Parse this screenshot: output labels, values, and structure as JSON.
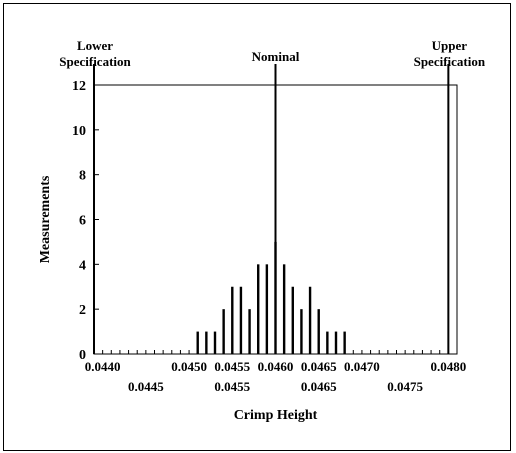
{
  "chart_data": {
    "type": "bar",
    "title": "",
    "xlabel": "Crimp Height",
    "ylabel": "Measurements",
    "xlim": [
      0.0439,
      0.0481
    ],
    "ylim": [
      0,
      12
    ],
    "y_ticks": [
      0,
      2,
      4,
      6,
      8,
      10,
      12
    ],
    "x_ticks_upper": [
      "0.0440",
      "0.0450",
      "0.0455",
      "0.0460",
      "0.0465",
      "0.0470",
      "0.0480"
    ],
    "x_ticks_lower": [
      "0.0445",
      "0.0455",
      "0.0465",
      "0.0475"
    ],
    "x_tick_values_upper": [
      0.044,
      0.045,
      0.0455,
      0.046,
      0.0465,
      0.047,
      0.048
    ],
    "x_tick_values_lower": [
      0.0445,
      0.0455,
      0.0465,
      0.0475
    ],
    "series": [
      {
        "x": [
          0.0451,
          0.0452,
          0.0453,
          0.0454,
          0.0455,
          0.0456,
          0.0457,
          0.0458,
          0.0459,
          0.046,
          0.0461,
          0.0462,
          0.0463,
          0.0464,
          0.0465,
          0.0466,
          0.0467,
          0.0468
        ],
        "values": [
          1,
          1,
          1,
          2,
          3,
          3,
          2,
          4,
          4,
          5,
          4,
          3,
          2,
          3,
          2,
          1,
          1,
          1
        ]
      }
    ],
    "reference_lines": [
      {
        "label_line1": "Lower",
        "label_line2": "Specification",
        "x": 0.0439
      },
      {
        "label_line1": "Nominal",
        "label_line2": "",
        "x": 0.046
      },
      {
        "label_line1": "Upper",
        "label_line2": "Specification",
        "x": 0.048
      }
    ],
    "grid": false
  }
}
